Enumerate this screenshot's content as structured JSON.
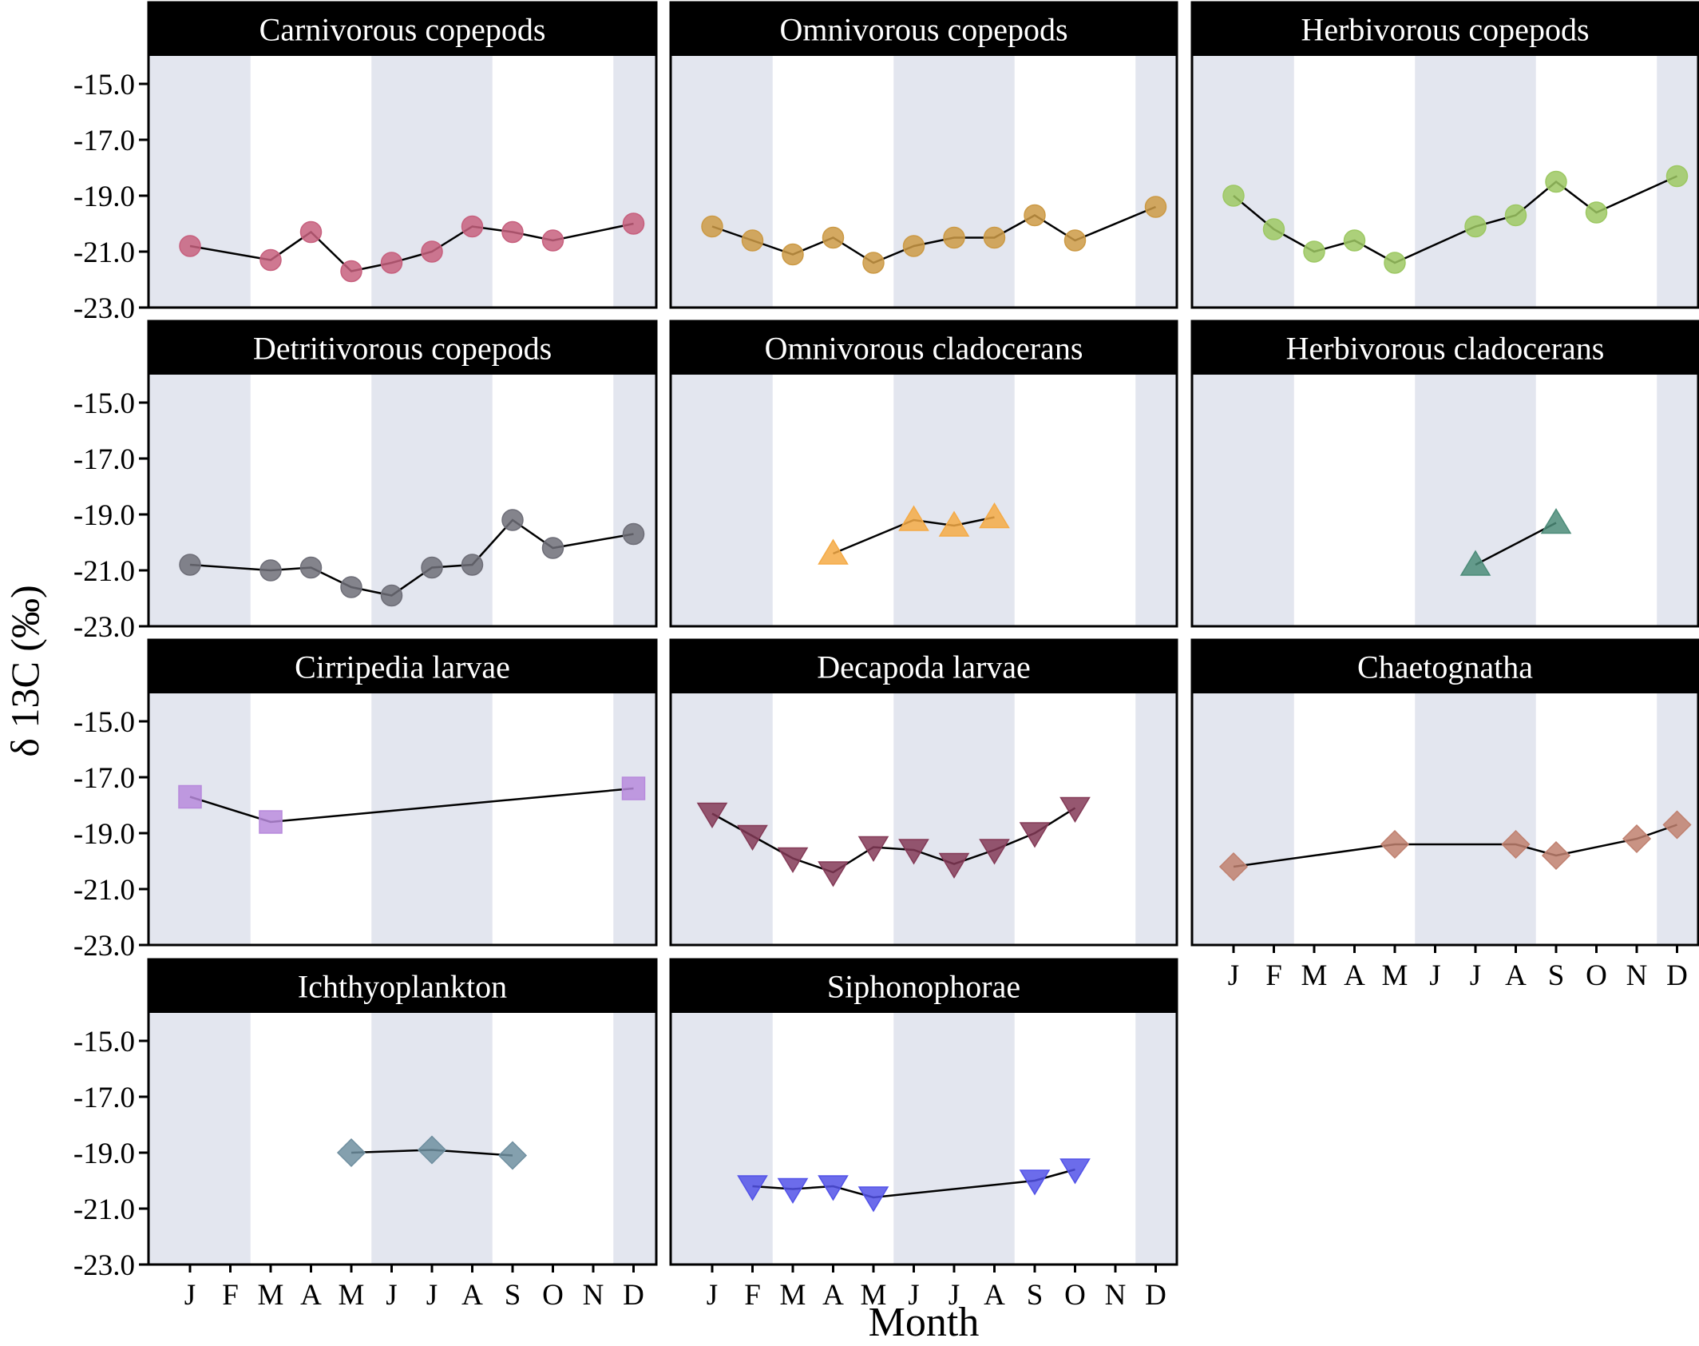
{
  "figure": {
    "ylabel": "δ 13C (‰)",
    "xlabel": "Month"
  },
  "style": {
    "shade_color": "#E3E6EF",
    "title_bar_color": "#000000",
    "line_color": "#000000"
  },
  "chart_data": {
    "type": "line",
    "months": [
      "J",
      "F",
      "M",
      "A",
      "M",
      "J",
      "J",
      "A",
      "S",
      "O",
      "N",
      "D"
    ],
    "ylim": [
      -23.0,
      -14.0
    ],
    "yticks": [
      "-15.0",
      "-17.0",
      "-19.0",
      "-21.0",
      "-23.0"
    ],
    "shaded_month_bands": [
      [
        1,
        2
      ],
      [
        6,
        8
      ],
      [
        12,
        12
      ]
    ],
    "panels": [
      {
        "title": "Carnivorous copepods",
        "marker": "circle",
        "color": "#C7607E",
        "points": [
          [
            1,
            -20.8
          ],
          [
            3,
            -21.3
          ],
          [
            4,
            -20.3
          ],
          [
            5,
            -21.7
          ],
          [
            6,
            -21.4
          ],
          [
            7,
            -21.0
          ],
          [
            8,
            -20.1
          ],
          [
            9,
            -20.3
          ],
          [
            10,
            -20.6
          ],
          [
            12,
            -20.0
          ]
        ]
      },
      {
        "title": "Omnivorous copepods",
        "marker": "circle",
        "color": "#CC9A45",
        "points": [
          [
            1,
            -20.1
          ],
          [
            2,
            -20.6
          ],
          [
            3,
            -21.1
          ],
          [
            4,
            -20.5
          ],
          [
            5,
            -21.4
          ],
          [
            6,
            -20.8
          ],
          [
            7,
            -20.5
          ],
          [
            8,
            -20.5
          ],
          [
            9,
            -19.7
          ],
          [
            10,
            -20.6
          ],
          [
            12,
            -19.4
          ]
        ]
      },
      {
        "title": "Herbivorous copepods",
        "marker": "circle",
        "color": "#9DC863",
        "points": [
          [
            1,
            -19.0
          ],
          [
            2,
            -20.2
          ],
          [
            3,
            -21.0
          ],
          [
            4,
            -20.6
          ],
          [
            5,
            -21.4
          ],
          [
            7,
            -20.1
          ],
          [
            8,
            -19.7
          ],
          [
            9,
            -18.5
          ],
          [
            10,
            -19.6
          ],
          [
            12,
            -18.3
          ]
        ]
      },
      {
        "title": "Detritivorous copepods",
        "marker": "circle",
        "color": "#6E6E78",
        "points": [
          [
            1,
            -20.8
          ],
          [
            3,
            -21.0
          ],
          [
            4,
            -20.9
          ],
          [
            5,
            -21.6
          ],
          [
            6,
            -21.9
          ],
          [
            7,
            -20.9
          ],
          [
            8,
            -20.8
          ],
          [
            9,
            -19.2
          ],
          [
            10,
            -20.2
          ],
          [
            12,
            -19.7
          ]
        ]
      },
      {
        "title": "Omnivorous cladocerans",
        "marker": "triangle-up",
        "color": "#F5AA45",
        "points": [
          [
            4,
            -20.4
          ],
          [
            6,
            -19.2
          ],
          [
            7,
            -19.4
          ],
          [
            8,
            -19.1
          ]
        ]
      },
      {
        "title": "Herbivorous cladocerans",
        "marker": "triangle-up",
        "color": "#4C8C79",
        "points": [
          [
            7,
            -20.8
          ],
          [
            9,
            -19.3
          ]
        ]
      },
      {
        "title": "Cirripedia larvae",
        "marker": "square",
        "color": "#B789DC",
        "points": [
          [
            1,
            -17.7
          ],
          [
            3,
            -18.6
          ],
          [
            12,
            -17.4
          ]
        ]
      },
      {
        "title": "Decapoda larvae",
        "marker": "triangle-down",
        "color": "#843A57",
        "points": [
          [
            1,
            -18.3
          ],
          [
            2,
            -19.1
          ],
          [
            3,
            -19.9
          ],
          [
            4,
            -20.4
          ],
          [
            5,
            -19.5
          ],
          [
            6,
            -19.6
          ],
          [
            7,
            -20.1
          ],
          [
            8,
            -19.6
          ],
          [
            9,
            -19.0
          ],
          [
            10,
            -18.1
          ]
        ]
      },
      {
        "title": "Chaetognatha",
        "marker": "diamond",
        "color": "#C0806F",
        "points": [
          [
            1,
            -20.2
          ],
          [
            5,
            -19.4
          ],
          [
            8,
            -19.4
          ],
          [
            9,
            -19.8
          ],
          [
            11,
            -19.2
          ],
          [
            12,
            -18.7
          ]
        ]
      },
      {
        "title": "Ichthyoplankton",
        "marker": "diamond",
        "color": "#6F8FA0",
        "points": [
          [
            5,
            -19.0
          ],
          [
            7,
            -18.9
          ],
          [
            9,
            -19.1
          ]
        ]
      },
      {
        "title": "Siphonophorae",
        "marker": "triangle-down",
        "color": "#5252E8",
        "points": [
          [
            2,
            -20.2
          ],
          [
            3,
            -20.3
          ],
          [
            4,
            -20.2
          ],
          [
            5,
            -20.6
          ],
          [
            9,
            -20.0
          ],
          [
            10,
            -19.6
          ]
        ]
      }
    ]
  }
}
